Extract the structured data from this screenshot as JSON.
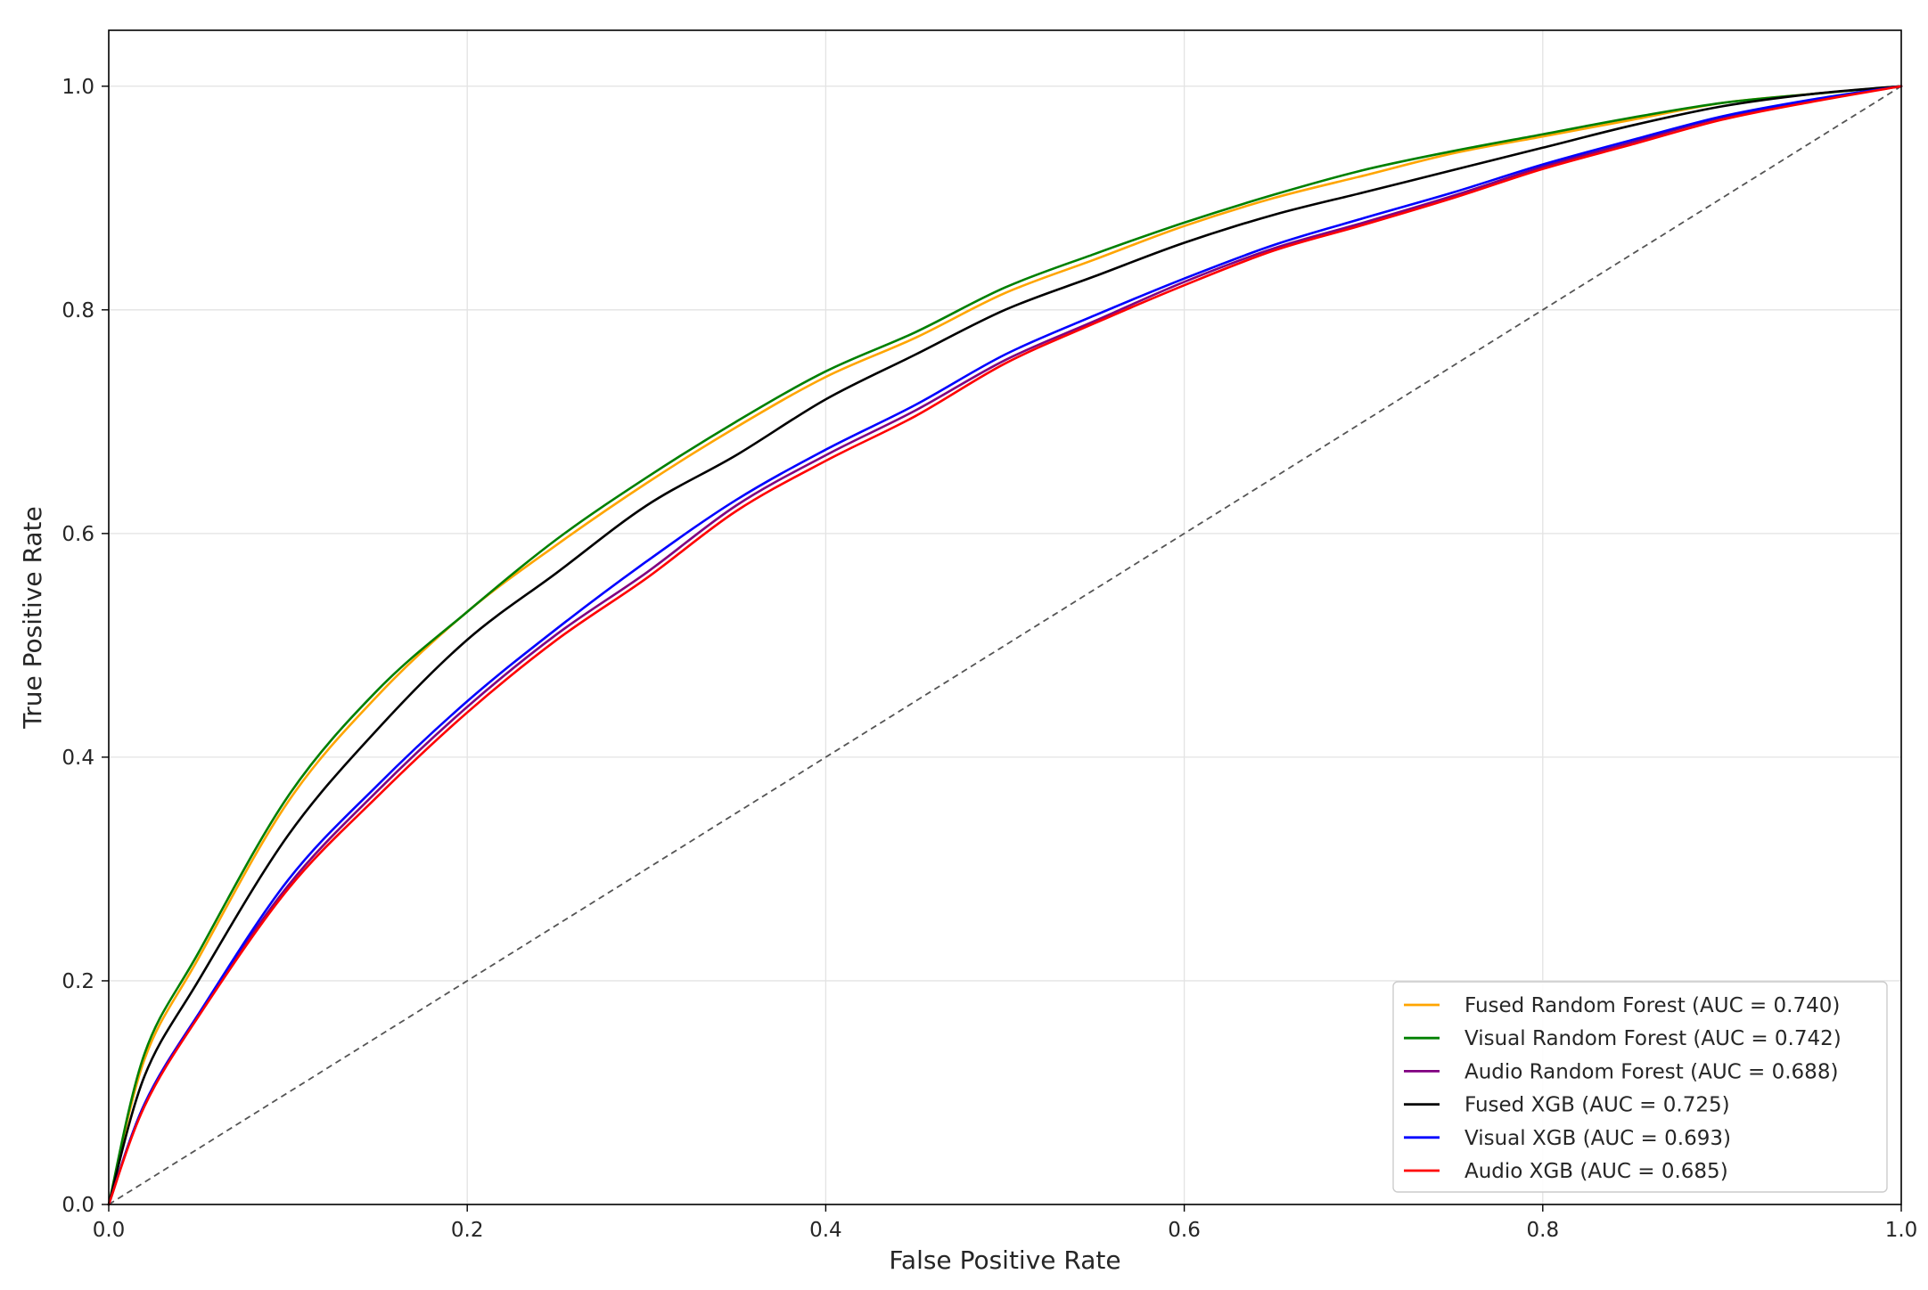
{
  "chart_data": {
    "type": "line",
    "title": "",
    "xlabel": "False Positive Rate",
    "ylabel": "True Positive Rate",
    "xlim": [
      0.0,
      1.0
    ],
    "ylim": [
      0.0,
      1.05
    ],
    "xticks": [
      "0.0",
      "0.2",
      "0.4",
      "0.6",
      "0.8",
      "1.0"
    ],
    "yticks": [
      "0.0",
      "0.2",
      "0.4",
      "0.6",
      "0.8",
      "1.0"
    ],
    "grid": true,
    "legend_position": "lower-right",
    "reference_line": {
      "x": [
        0.0,
        1.0
      ],
      "y": [
        0.0,
        1.0
      ],
      "style": "dashed",
      "color": "#555555"
    },
    "x": [
      0.0,
      0.02,
      0.05,
      0.1,
      0.15,
      0.2,
      0.25,
      0.3,
      0.35,
      0.4,
      0.45,
      0.5,
      0.55,
      0.6,
      0.65,
      0.7,
      0.75,
      0.8,
      0.85,
      0.9,
      0.95,
      1.0
    ],
    "series": [
      {
        "name": "Fused Random Forest (AUC = 0.740)",
        "color": "#ffa500",
        "values": [
          0.0,
          0.13,
          0.22,
          0.36,
          0.455,
          0.53,
          0.59,
          0.645,
          0.695,
          0.74,
          0.775,
          0.815,
          0.845,
          0.875,
          0.9,
          0.92,
          0.94,
          0.955,
          0.97,
          0.985,
          0.993,
          1.0
        ]
      },
      {
        "name": "Visual Random Forest (AUC = 0.742)",
        "color": "#008000",
        "values": [
          0.0,
          0.135,
          0.225,
          0.365,
          0.46,
          0.53,
          0.595,
          0.65,
          0.7,
          0.745,
          0.78,
          0.82,
          0.85,
          0.878,
          0.903,
          0.925,
          0.942,
          0.957,
          0.972,
          0.985,
          0.993,
          1.0
        ]
      },
      {
        "name": "Audio Random Forest (AUC = 0.688)",
        "color": "#800080",
        "values": [
          0.0,
          0.09,
          0.17,
          0.285,
          0.37,
          0.445,
          0.51,
          0.565,
          0.625,
          0.67,
          0.71,
          0.755,
          0.79,
          0.825,
          0.855,
          0.878,
          0.902,
          0.928,
          0.95,
          0.972,
          0.987,
          1.0
        ]
      },
      {
        "name": "Fused XGB (AUC = 0.725)",
        "color": "#000000",
        "values": [
          0.0,
          0.115,
          0.2,
          0.33,
          0.425,
          0.505,
          0.565,
          0.625,
          0.67,
          0.72,
          0.76,
          0.8,
          0.83,
          0.86,
          0.885,
          0.905,
          0.925,
          0.945,
          0.965,
          0.982,
          0.993,
          1.0
        ]
      },
      {
        "name": "Visual XGB (AUC = 0.693)",
        "color": "#0000ff",
        "values": [
          0.0,
          0.09,
          0.17,
          0.29,
          0.375,
          0.45,
          0.515,
          0.575,
          0.63,
          0.675,
          0.715,
          0.76,
          0.795,
          0.828,
          0.858,
          0.882,
          0.905,
          0.93,
          0.952,
          0.973,
          0.988,
          1.0
        ]
      },
      {
        "name": "Audio XGB (AUC = 0.685)",
        "color": "#ff0000",
        "values": [
          0.0,
          0.088,
          0.168,
          0.282,
          0.365,
          0.44,
          0.505,
          0.56,
          0.62,
          0.665,
          0.705,
          0.752,
          0.788,
          0.822,
          0.853,
          0.876,
          0.9,
          0.926,
          0.948,
          0.97,
          0.986,
          1.0
        ]
      }
    ]
  }
}
